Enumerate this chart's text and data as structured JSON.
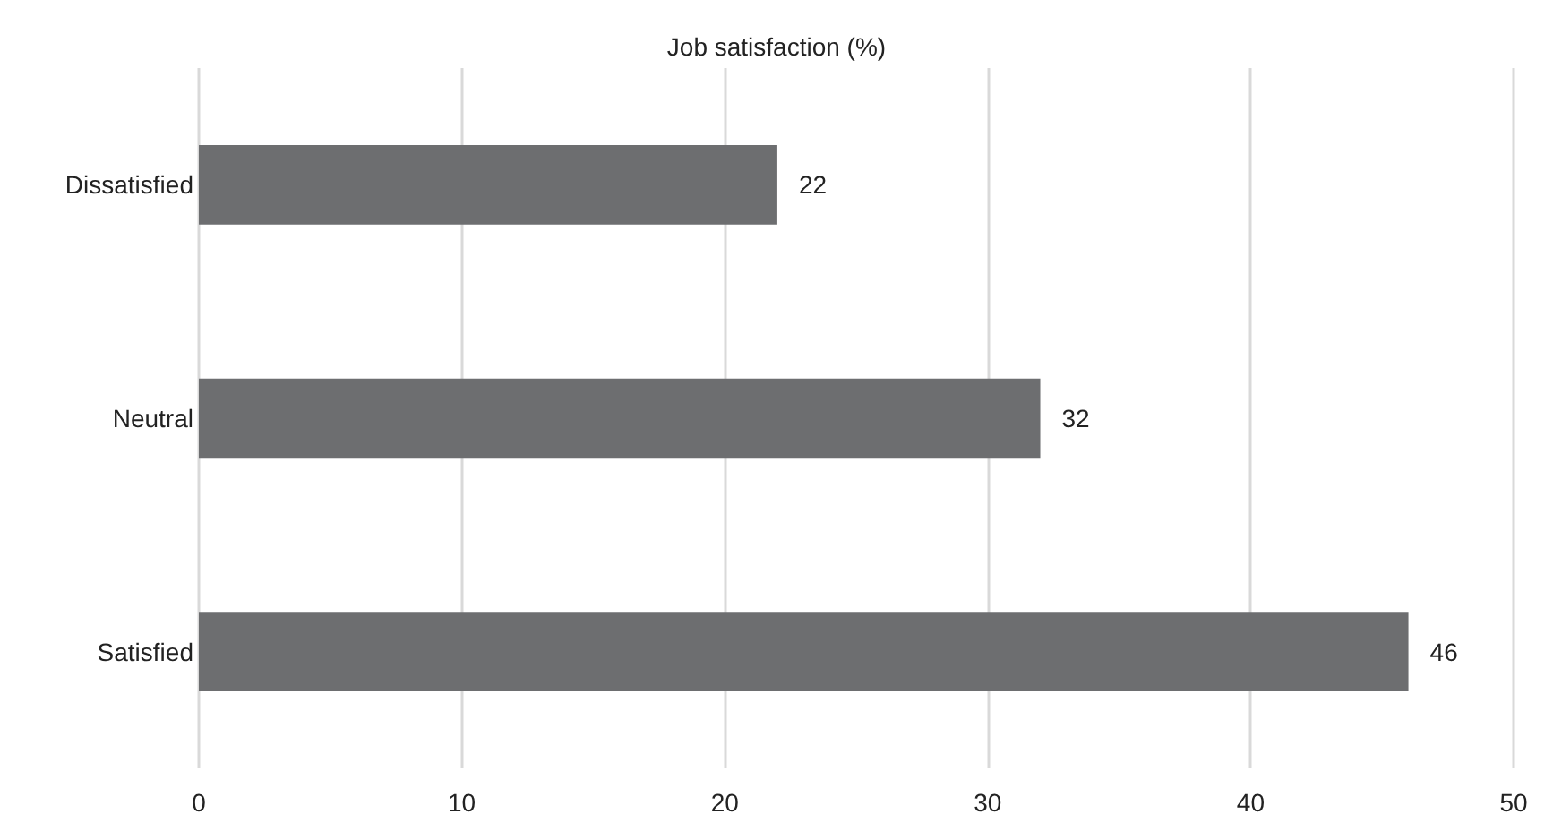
{
  "chart_data": {
    "type": "bar",
    "orientation": "horizontal",
    "title": "Job satisfaction (%)",
    "categories": [
      "Dissatisfied",
      "Neutral",
      "Satisfied"
    ],
    "values": [
      22,
      32,
      46
    ],
    "color": "#6d6e70",
    "xlim": [
      0,
      50
    ],
    "xticks": [
      0,
      10,
      20,
      30,
      40,
      50
    ],
    "grid": "x",
    "data_labels": true
  }
}
